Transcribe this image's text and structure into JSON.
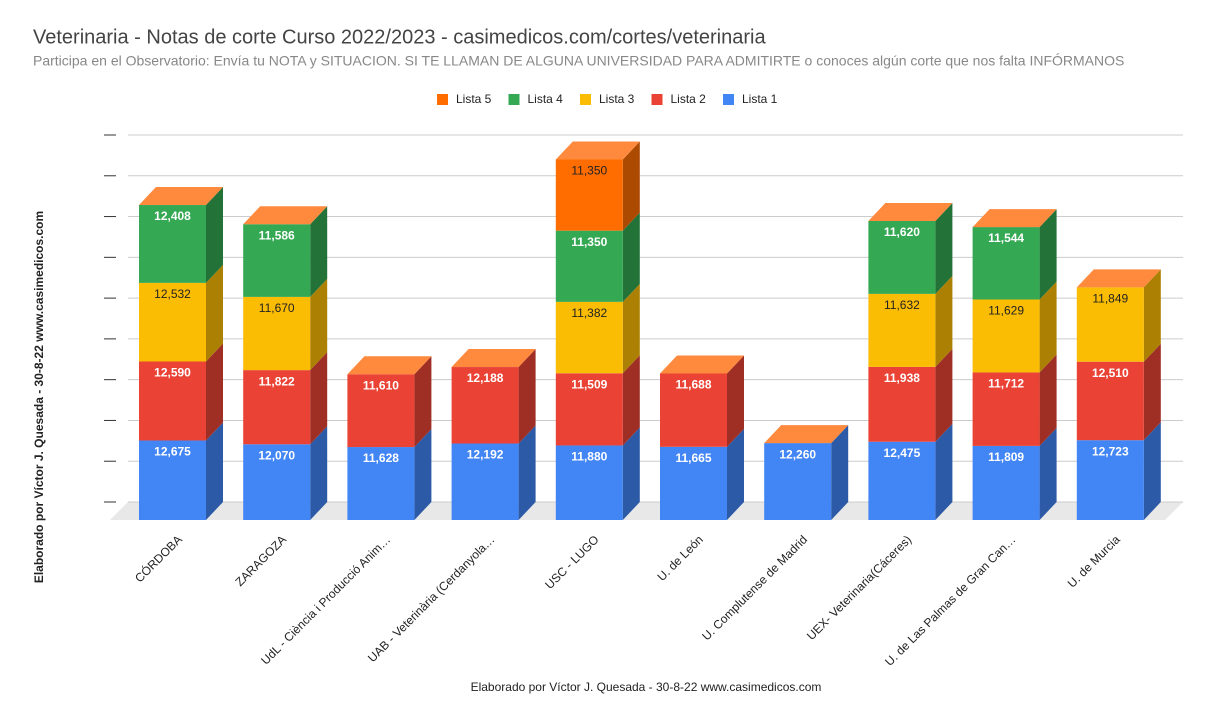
{
  "chart_data": {
    "type": "bar3d_stacked",
    "title": "Veterinaria - Notas de corte Curso 2022/2023 - casimedicos.com/cortes/veterinaria",
    "subtitle": "Participa en el Observatorio: Envía tu NOTA y SITUACION. SI TE LLAMAN DE ALGUNA UNIVERSIDAD PARA ADMITIRTE o conoces algún corte que nos falta INFÓRMANOS",
    "y_axis_label": "Elaborado por Víctor J. Quesada - 30-8-22  www.casimedicos.com",
    "x_axis_label": "Elaborado por Víctor J. Quesada - 30-8-22  www.casimedicos.com",
    "categories": [
      "CÓRDOBA",
      "ZARAGOZA",
      "UdL - Ciència i Producció Anim…",
      "UAB - Veterinària (Cerdanyola…",
      "USC - LUGO",
      "U. de León",
      "U. Complutense de Madrid",
      "UEX- Veterinaria(Cáceres)",
      "U. de Las Palmas de Gran Can…",
      "U. de Murcia"
    ],
    "series": [
      {
        "name": "Lista 1",
        "color": "#4285f4",
        "values": [
          12675,
          12070,
          11628,
          12192,
          11880,
          11665,
          12260,
          12475,
          11809,
          12723
        ],
        "value_labels": [
          "12,675",
          "12,070",
          "11,628",
          "12,192",
          "11,880",
          "11,665",
          "12,260",
          "12,475",
          "11,809",
          "12,723"
        ]
      },
      {
        "name": "Lista 2",
        "color": "#ea4335",
        "values": [
          12590,
          11822,
          11610,
          12188,
          11509,
          11688,
          null,
          11938,
          11712,
          12510
        ],
        "value_labels": [
          "12,590",
          "11,822",
          "11,610",
          "12,188",
          "11,509",
          "11,688",
          null,
          "11,938",
          "11,712",
          "12,510"
        ]
      },
      {
        "name": "Lista 3",
        "color": "#fbbc04",
        "values": [
          12532,
          11670,
          null,
          null,
          11382,
          null,
          null,
          11632,
          11629,
          11849
        ],
        "value_labels": [
          "12,532",
          "11,670",
          null,
          null,
          "11,382",
          null,
          null,
          "11,632",
          "11,629",
          "11,849"
        ]
      },
      {
        "name": "Lista 4",
        "color": "#34a853",
        "values": [
          12408,
          11586,
          null,
          null,
          11350,
          null,
          null,
          11620,
          11544,
          null
        ],
        "value_labels": [
          "12,408",
          "11,586",
          null,
          null,
          "11,350",
          null,
          null,
          "11,620",
          "11,544",
          null
        ]
      },
      {
        "name": "Lista 5",
        "color": "#ff6d01",
        "values": [
          null,
          null,
          null,
          null,
          11350,
          null,
          null,
          null,
          null,
          null
        ],
        "value_labels": [
          null,
          null,
          null,
          null,
          "11,350",
          null,
          null,
          null,
          null,
          null
        ]
      }
    ],
    "ylim": [
      0,
      58500
    ],
    "yticks": [
      0,
      6500,
      13000,
      19500,
      26000,
      32500,
      39000,
      45500,
      52000,
      58500
    ],
    "grid": true,
    "legend": "top"
  }
}
